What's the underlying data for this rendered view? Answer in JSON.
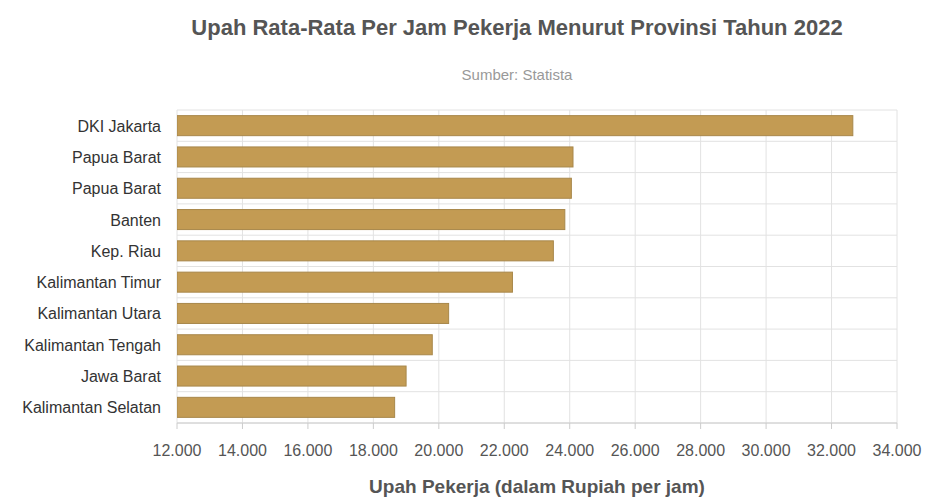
{
  "chart_data": {
    "type": "bar",
    "orientation": "horizontal",
    "title": "Upah Rata-Rata Per Jam Pekerja Menurut Provinsi Tahun 2022",
    "subtitle": "Sumber: Statista",
    "x_label": "Upah Pekerja (dalam Rupiah per jam)",
    "categories": [
      "DKI Jakarta",
      "Papua Barat",
      "Papua Barat",
      "Banten",
      "Kep. Riau",
      "Kalimantan Timur",
      "Kalimantan Utara",
      "Kalimantan Tengah",
      "Jawa Barat",
      "Kalimantan Selatan"
    ],
    "values": [
      32650,
      24100,
      24050,
      23850,
      23500,
      22250,
      20300,
      19800,
      19000,
      18650
    ],
    "color": "#c39b53",
    "xlim": [
      12000,
      34000
    ],
    "xticks": [
      {
        "value": 12000,
        "label": "12.000"
      },
      {
        "value": 14000,
        "label": "14.000"
      },
      {
        "value": 16000,
        "label": "16.000"
      },
      {
        "value": 18000,
        "label": "18.000"
      },
      {
        "value": 20000,
        "label": "20.000"
      },
      {
        "value": 22000,
        "label": "22.000"
      },
      {
        "value": 24000,
        "label": "24.000"
      },
      {
        "value": 26000,
        "label": "26.000"
      },
      {
        "value": 28000,
        "label": "28.000"
      },
      {
        "value": 30000,
        "label": "30.000"
      },
      {
        "value": 32000,
        "label": "32.000"
      },
      {
        "value": 34000,
        "label": "34.000"
      }
    ],
    "grid": true
  }
}
